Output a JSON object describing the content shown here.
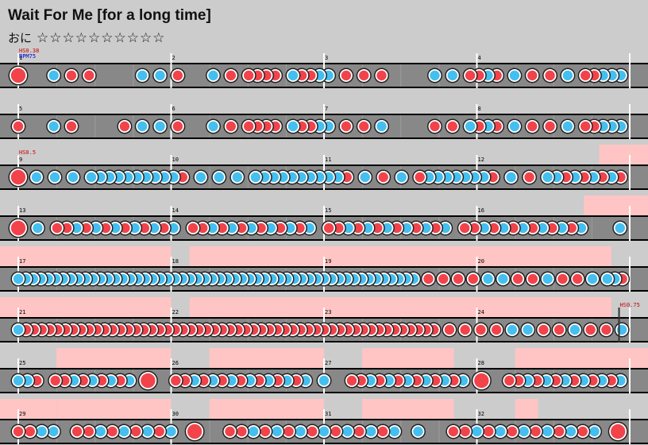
{
  "song": {
    "title": "Wait For Me [for a long time]"
  },
  "difficulty": {
    "label": "おに",
    "stars": "☆☆☆☆☆☆☆☆☆☆"
  },
  "colors": {
    "don": "#f2434b",
    "ka": "#45bff0",
    "lane": "#888888",
    "gogo": "#ffc4c4",
    "bg": "#cccccc"
  },
  "events": [
    {
      "measure": 1,
      "texts": [
        {
          "text": "HS0.38",
          "color": "#cc0000"
        },
        {
          "text": "BPM75",
          "color": "#0000cc"
        }
      ]
    },
    {
      "measure": 9,
      "texts": [
        {
          "text": "HS0.5",
          "color": "#cc0000"
        }
      ]
    },
    {
      "measure": 24,
      "pos": 0.93,
      "texts": [
        {
          "text": "HS0.75",
          "color": "#cc0000"
        }
      ]
    }
  ],
  "rows": [
    {
      "measures": [
        "1",
        "2",
        "3",
        "4"
      ],
      "notes": "B...K.D.D.....K.K.D...K.D.DDDD.KDDKK.D.D.D.....K.K.DDKD.K.D.D.K.DDKKK"
    },
    {
      "measures": [
        "5",
        "6",
        "7",
        "8"
      ],
      "notes": "D...K.D.....D.K.K.D...K.D.DDDD.KDDKK.D.D.K.....D.D.KDKD.K.D.D.K.DDKKK"
    },
    {
      "measures": [
        "9",
        "10",
        "11",
        "12"
      ],
      "gogo": [
        [
          3.8,
          4
        ]
      ],
      "notes": "B.K.K.K.KKKKKKKKKKD.K.K.K.KKKKKKKKKKD.K.D.K.DKKKKKKKD.K.D.KKDKDKDKD"
    },
    {
      "measures": [
        "13",
        "14",
        "15",
        "16"
      ],
      "gogo": [
        [
          3.7,
          4
        ]
      ],
      "notes": "B.K.DDKDKDKDKDKDK.DDKDKDKDKDKDK.DDKDKDKDKDKDK.DDKDKDKDKDKDK...K"
    },
    {
      "measures": [
        "17",
        "18",
        "19",
        "20"
      ],
      "gogo": [
        [
          0,
          1
        ],
        [
          1.12,
          3.88
        ]
      ],
      "notes": "KKKKKKKKKKKKKKKKKKKKKKKKKKKKKKKKKKKKKKKKKKKKKKKKKKKKKK.D.D.D.D.K.K.D.D.K.D.D.K.KKD"
    },
    {
      "measures": [
        "21",
        "22",
        "23",
        "24"
      ],
      "gogo": [
        [
          0,
          1
        ],
        [
          1.12,
          3.88
        ]
      ],
      "notes": "KDDDDDDDDDDDDDDDDDDDDDDDDDDDDDDDDDDDDDDDDDDDDDDDDDDDDD.D.D.D.D.K.K.D.D.K.D.D.K"
    },
    {
      "measures": [
        "25",
        "26",
        "27",
        "28"
      ],
      "gogo": [
        [
          0.25,
          1
        ],
        [
          1.25,
          2
        ],
        [
          2.25,
          2.85
        ],
        [
          3.25,
          4
        ]
      ],
      "notes": "KKD.DDKDKDKDK.B..DDKDKDKDKDKDKDK.K..DDKDKDKDKDKDK.B..DDKDKDKDKDKDK"
    },
    {
      "measures": [
        "29",
        "30",
        "31",
        "32"
      ],
      "gogo": [
        [
          0,
          0.25
        ],
        [
          0.25,
          1
        ],
        [
          1.25,
          2
        ],
        [
          2.25,
          2.85
        ],
        [
          3.25,
          3.4
        ]
      ],
      "notes": "DDKK.DDKDKDKDK.B..DDKDKDKDKDKDKDK.K..DDKDKDKDKDKDK.B"
    }
  ]
}
